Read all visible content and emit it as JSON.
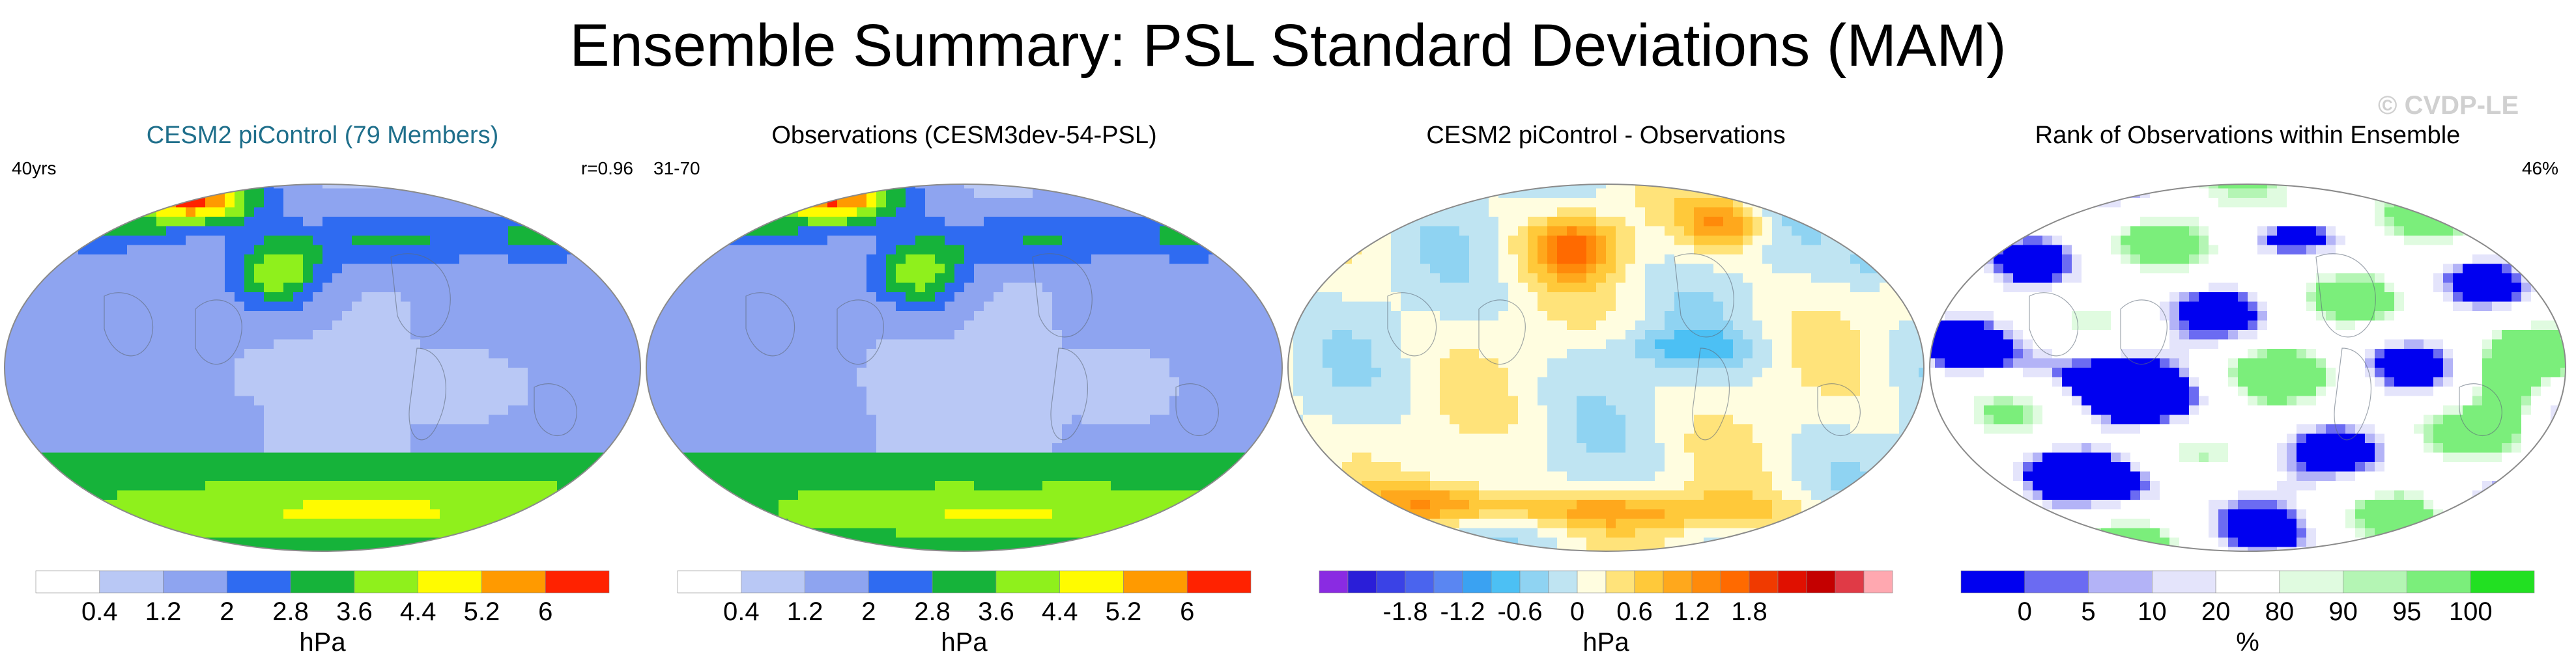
{
  "page": {
    "title": "Ensemble Summary: PSL Standard Deviations (MAM)",
    "watermark": "© CVDP-LE"
  },
  "chart_data": [
    {
      "type": "heatmap",
      "title": "CESM2 piControl (79 Members)",
      "title_color": "#1f6f8b",
      "left_label": "40yrs",
      "right_label": "r=0.96",
      "colorbar": {
        "colors": [
          "#ffffff",
          "#b9c8f5",
          "#8ea4f0",
          "#2f6bf1",
          "#16b33a",
          "#8ff01c",
          "#fffb00",
          "#ff9a00",
          "#ff2200"
        ],
        "tick_labels": [
          "0.4",
          "1.2",
          "2",
          "2.8",
          "3.6",
          "4.4",
          "5.2",
          "6"
        ],
        "unit": "hPa"
      },
      "field": "std"
    },
    {
      "type": "heatmap",
      "title": "Observations (CESM3dev-54-PSL)",
      "title_color": "#000000",
      "left_label": "31-70",
      "right_label": "",
      "colorbar": {
        "colors": [
          "#ffffff",
          "#b9c8f5",
          "#8ea4f0",
          "#2f6bf1",
          "#16b33a",
          "#8ff01c",
          "#fffb00",
          "#ff9a00",
          "#ff2200"
        ],
        "tick_labels": [
          "0.4",
          "1.2",
          "2",
          "2.8",
          "3.6",
          "4.4",
          "5.2",
          "6"
        ],
        "unit": "hPa"
      },
      "field": "std"
    },
    {
      "type": "heatmap",
      "title": "CESM2 piControl - Observations",
      "title_color": "#000000",
      "left_label": "",
      "right_label": "",
      "colorbar": {
        "colors": [
          "#8a2be2",
          "#2a1ed8",
          "#3a42e6",
          "#4a64ee",
          "#5a86f2",
          "#3aa2f2",
          "#4cc0f4",
          "#8fd3f2",
          "#bfe4f2",
          "#fffde0",
          "#ffe37a",
          "#ffc93a",
          "#ffa81c",
          "#ff8a0a",
          "#ff6a00",
          "#f03a00",
          "#e01000",
          "#c40000",
          "#e03a46",
          "#ffa8b0"
        ],
        "tick_labels": [
          "-1.8",
          "-1.2",
          "-0.6",
          "0",
          "0.6",
          "1.2",
          "1.8"
        ],
        "unit": "hPa"
      },
      "field": "diff"
    },
    {
      "type": "heatmap",
      "title": "Rank of Observations within Ensemble",
      "title_color": "#000000",
      "left_label": "",
      "right_label": "46%",
      "colorbar": {
        "colors": [
          "#0000f0",
          "#6b6bf2",
          "#b3b3f7",
          "#e4e4fb",
          "#ffffff",
          "#e0fbe0",
          "#b4f5b4",
          "#7bee7b",
          "#22e022"
        ],
        "tick_labels": [
          "0",
          "5",
          "10",
          "20",
          "80",
          "90",
          "95",
          "100"
        ],
        "unit": "%"
      },
      "field": "rank"
    }
  ]
}
